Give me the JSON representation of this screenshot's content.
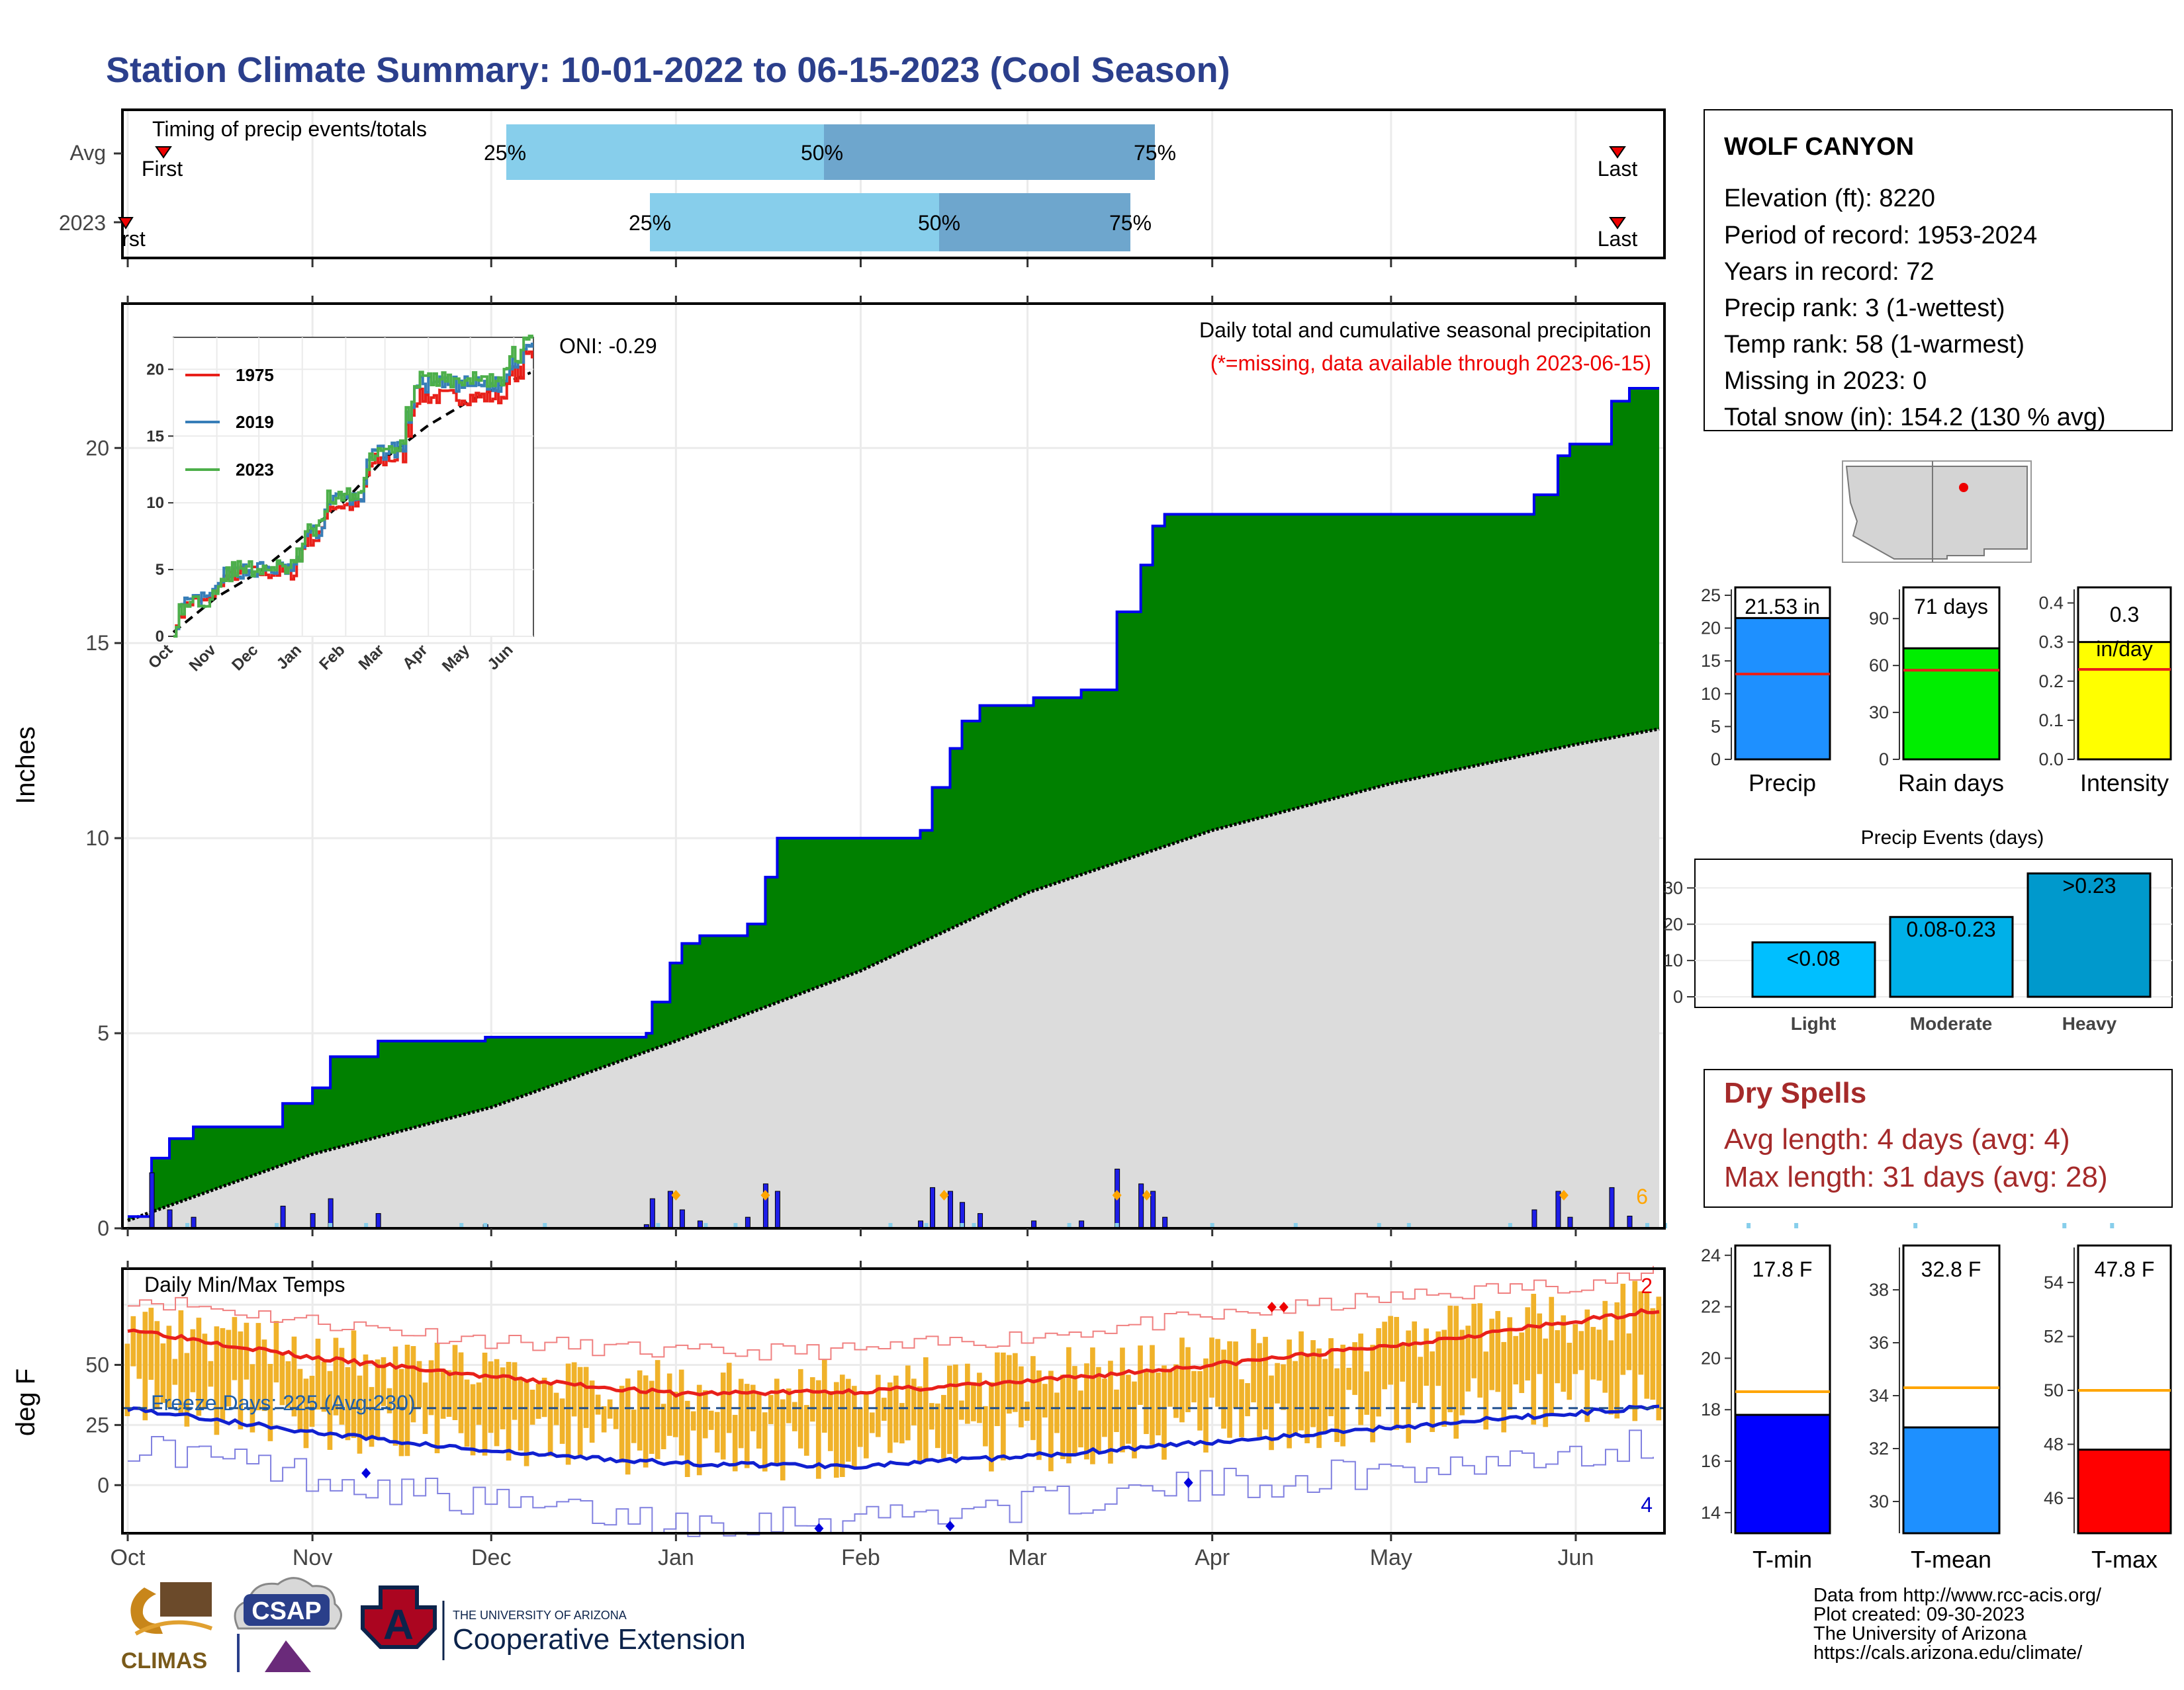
{
  "title": "Station Climate Summary: 10-01-2022 to 06-15-2023 (Cool Season)",
  "colors": {
    "title": "#2b3f8c",
    "cum_fill": "#008000",
    "cum_line": "#0000ee",
    "avg_fill": "#dcdcdc",
    "bar_light": "#87ceeb",
    "bar_dark": "#6ea6cd",
    "temp_bar": "#f0b22a",
    "red": "#e8201a",
    "blue": "#1020d0",
    "dryspell": "#a52a2a",
    "precip_bar": "#1e90ff",
    "raindays_bar": "#00ee00",
    "intensity_bar": "#ffff00",
    "events_bar": "#00a8d8",
    "tmin_bar": "#0000ff",
    "tmean_bar": "#1e90ff",
    "tmax_bar": "#ff0000",
    "ref_orange": "#ffa500"
  },
  "timing": {
    "label": "Timing of precip events/totals",
    "rows": [
      "Avg",
      "2023"
    ],
    "first_label": "First",
    "last_label": "Last",
    "first_label_cut": "rst",
    "pct25": "25%",
    "pct50": "50%",
    "pct75": "75%"
  },
  "station": {
    "name": "WOLF CANYON",
    "lines": [
      "Elevation (ft): 8220",
      "Period of record: 1953-2024",
      "Years in record: 72",
      "Precip rank: 3 (1-wettest)",
      "Temp rank: 58 (1-warmest)",
      "Missing in 2023: 0",
      "Total snow (in): 154.2 (130 % avg)"
    ]
  },
  "precip_panel": {
    "ylabel": "Inches",
    "title": "Daily total and cumulative seasonal precipitation",
    "subtitle": "(*=missing, data available through 2023-06-15)",
    "oni": "ONI: -0.29",
    "corner_count": "6",
    "yticks": [
      "0",
      "5",
      "10",
      "15",
      "20"
    ]
  },
  "months": [
    "Oct",
    "Nov",
    "Dec",
    "Jan",
    "Feb",
    "Mar",
    "Apr",
    "May",
    "Jun"
  ],
  "temp_panel": {
    "ylabel": "deg F",
    "title": "Daily Min/Max Temps",
    "freeze": "Freeze Days: 225 (Avg:230)",
    "count_top": "2",
    "count_bottom": "4",
    "yticks": [
      "0",
      "25",
      "50"
    ]
  },
  "summary_bars": {
    "precip": {
      "label": "Precip",
      "value_text": "21.53 in",
      "yticks": [
        "0",
        "5",
        "10",
        "15",
        "20",
        "25"
      ]
    },
    "raindays": {
      "label": "Rain days",
      "value_text": "71 days",
      "yticks": [
        "0",
        "30",
        "60",
        "90"
      ]
    },
    "intensity": {
      "label": "Intensity",
      "value_text": "0.3",
      "unit": "in/day",
      "yticks": [
        "0.0",
        "0.1",
        "0.2",
        "0.3",
        "0.4"
      ]
    }
  },
  "events": {
    "title": "Precip Events (days)",
    "yticks": [
      "0",
      "10",
      "20",
      "30"
    ],
    "categories": [
      "Light",
      "Moderate",
      "Heavy"
    ],
    "bar_labels": [
      "<0.08",
      "0.08-0.23",
      ">0.23"
    ]
  },
  "dryspells": {
    "title": "Dry Spells",
    "avg": "Avg length: 4 days (avg: 4)",
    "max": "Max length: 31 days (avg: 28)"
  },
  "temp_bars": {
    "tmin": {
      "label": "T-min",
      "value_text": "17.8 F",
      "yticks": [
        "14",
        "16",
        "18",
        "20",
        "22",
        "24"
      ]
    },
    "tmean": {
      "label": "T-mean",
      "value_text": "32.8 F",
      "yticks": [
        "30",
        "32",
        "34",
        "36",
        "38"
      ]
    },
    "tmax": {
      "label": "T-max",
      "value_text": "47.8 F",
      "yticks": [
        "46",
        "48",
        "50",
        "52",
        "54"
      ]
    }
  },
  "inset": {
    "yticks": [
      "0",
      "5",
      "10",
      "15",
      "20"
    ],
    "months": [
      "Oct",
      "Nov",
      "Dec",
      "Jan",
      "Feb",
      "Mar",
      "Apr",
      "May",
      "Jun"
    ],
    "legend": [
      "1975",
      "2019",
      "2023"
    ]
  },
  "footer": {
    "credits": [
      "Data from http://www.rcc-acis.org/",
      "Plot created: 09-30-2023",
      "The University of Arizona",
      "https://cals.arizona.edu/climate/"
    ],
    "climas": "CLIMAS",
    "csap": "CSAP",
    "ua_small": "THE UNIVERSITY OF ARIZONA",
    "ua_big": "Cooperative Extension"
  },
  "chart_data": [
    {
      "type": "area",
      "title": "Daily total and cumulative seasonal precipitation",
      "ylabel": "Inches",
      "ylim": [
        0,
        23.7
      ],
      "x_range": [
        "2022-10-01",
        "2023-06-15"
      ],
      "series": [
        {
          "name": "2023",
          "points": [
            [
              "2022-10-01",
              0.3
            ],
            [
              "2022-10-05",
              1.8
            ],
            [
              "2022-10-08",
              2.3
            ],
            [
              "2022-10-12",
              2.6
            ],
            [
              "2022-10-27",
              3.2
            ],
            [
              "2022-11-01",
              3.6
            ],
            [
              "2022-11-04",
              4.4
            ],
            [
              "2022-11-12",
              4.8
            ],
            [
              "2022-11-30",
              4.9
            ],
            [
              "2022-12-27",
              5.0
            ],
            [
              "2022-12-28",
              5.8
            ],
            [
              "2022-12-31",
              6.8
            ],
            [
              "2023-01-02",
              7.3
            ],
            [
              "2023-01-05",
              7.5
            ],
            [
              "2023-01-13",
              7.8
            ],
            [
              "2023-01-16",
              9.0
            ],
            [
              "2023-01-18",
              10.0
            ],
            [
              "2023-02-11",
              10.2
            ],
            [
              "2023-02-13",
              11.3
            ],
            [
              "2023-02-16",
              12.3
            ],
            [
              "2023-02-18",
              13.0
            ],
            [
              "2023-02-21",
              13.4
            ],
            [
              "2023-03-02",
              13.6
            ],
            [
              "2023-03-10",
              13.8
            ],
            [
              "2023-03-16",
              15.8
            ],
            [
              "2023-03-20",
              17.0
            ],
            [
              "2023-03-22",
              18.0
            ],
            [
              "2023-03-24",
              18.3
            ],
            [
              "2023-05-25",
              18.8
            ],
            [
              "2023-05-29",
              19.8
            ],
            [
              "2023-05-31",
              20.1
            ],
            [
              "2023-06-07",
              21.2
            ],
            [
              "2023-06-10",
              21.53
            ],
            [
              "2023-06-15",
              21.53
            ]
          ]
        },
        {
          "name": "avg",
          "points": [
            [
              "2022-10-01",
              0.2
            ],
            [
              "2022-11-01",
              1.9
            ],
            [
              "2022-12-01",
              3.1
            ],
            [
              "2023-01-01",
              4.8
            ],
            [
              "2023-02-01",
              6.6
            ],
            [
              "2023-03-01",
              8.6
            ],
            [
              "2023-04-01",
              10.2
            ],
            [
              "2023-05-01",
              11.4
            ],
            [
              "2023-06-01",
              12.4
            ],
            [
              "2023-06-15",
              12.8
            ]
          ]
        }
      ]
    },
    {
      "type": "line",
      "title": "Daily Min/Max Temps",
      "ylabel": "deg F",
      "ylim": [
        -20,
        90
      ],
      "series": [
        {
          "name": "avg max",
          "points": [
            [
              "2022-10-01",
              65
            ],
            [
              "2022-11-01",
              53
            ],
            [
              "2022-12-01",
              45
            ],
            [
              "2023-01-01",
              38
            ],
            [
              "2023-02-01",
              39
            ],
            [
              "2023-03-01",
              43
            ],
            [
              "2023-04-01",
              50
            ],
            [
              "2023-05-01",
              58
            ],
            [
              "2023-06-01",
              68
            ],
            [
              "2023-06-15",
              73
            ]
          ]
        },
        {
          "name": "avg min",
          "points": [
            [
              "2022-10-01",
              32
            ],
            [
              "2022-11-01",
              22
            ],
            [
              "2022-12-01",
              14
            ],
            [
              "2023-01-01",
              9
            ],
            [
              "2023-02-01",
              8
            ],
            [
              "2023-03-01",
              12
            ],
            [
              "2023-04-01",
              18
            ],
            [
              "2023-05-01",
              24
            ],
            [
              "2023-06-01",
              30
            ],
            [
              "2023-06-15",
              33
            ]
          ]
        },
        {
          "name": "record max",
          "points": [
            [
              "2022-10-01",
              78
            ],
            [
              "2022-11-01",
              68
            ],
            [
              "2022-12-01",
              60
            ],
            [
              "2023-01-01",
              55
            ],
            [
              "2023-02-01",
              56
            ],
            [
              "2023-03-01",
              62
            ],
            [
              "2023-04-01",
              70
            ],
            [
              "2023-05-01",
              78
            ],
            [
              "2023-06-01",
              84
            ],
            [
              "2023-06-15",
              88
            ]
          ]
        },
        {
          "name": "record min",
          "points": [
            [
              "2022-10-01",
              17
            ],
            [
              "2022-11-01",
              4
            ],
            [
              "2022-12-01",
              -8
            ],
            [
              "2023-01-01",
              -15
            ],
            [
              "2023-02-01",
              -13
            ],
            [
              "2023-03-01",
              -8
            ],
            [
              "2023-04-01",
              0
            ],
            [
              "2023-05-01",
              6
            ],
            [
              "2023-06-01",
              14
            ],
            [
              "2023-06-15",
              18
            ]
          ]
        }
      ],
      "freeze_line": 32
    },
    {
      "type": "bar",
      "categories": [
        "Precip",
        "Rain days",
        "Intensity"
      ],
      "values": [
        21.53,
        71,
        0.3
      ],
      "averages": [
        13,
        57,
        0.23
      ]
    },
    {
      "type": "bar",
      "title": "Precip Events (days)",
      "categories": [
        "Light",
        "Moderate",
        "Heavy"
      ],
      "values": [
        15,
        22,
        34
      ],
      "ylim": [
        0,
        35
      ]
    },
    {
      "type": "bar",
      "categories": [
        "T-min",
        "T-mean",
        "T-max"
      ],
      "values": [
        17.8,
        32.8,
        47.8
      ],
      "averages": [
        18.7,
        34.3,
        50
      ]
    }
  ]
}
